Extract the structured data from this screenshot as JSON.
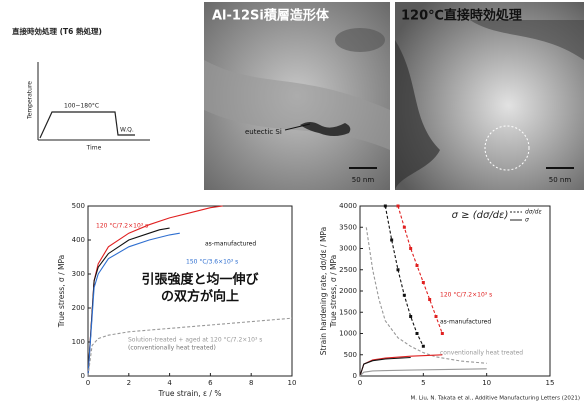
{
  "schematic": {
    "title": "直接時効処理 (T6 熱処理)",
    "y_label": "Temperature",
    "x_label": "Time",
    "temp_label": "100~180°C",
    "quench_label": "W.Q."
  },
  "micrographs": [
    {
      "title": "Al-12Si積層造形体",
      "annotation": "eutectic Si",
      "scale": "50 nm"
    },
    {
      "title": "120℃直接時効処理",
      "scale": "50 nm"
    }
  ],
  "chart_data": [
    {
      "type": "line",
      "x_label": "True strain, ε / %",
      "y_label": "True stress, σ / MPa",
      "xlim": [
        0,
        10
      ],
      "xticks": [
        0,
        2,
        4,
        6,
        8,
        10
      ],
      "ylim": [
        0,
        500
      ],
      "yticks": [
        0,
        100,
        200,
        300,
        400,
        500
      ],
      "annotation": [
        "引張強度と均一伸び",
        "の双方が向上"
      ],
      "note": "(conventionally heat treated)",
      "series": [
        {
          "name": "120 °C/7.2×10³ s",
          "color": "#e02020",
          "x": [
            0,
            0.3,
            0.5,
            1,
            2,
            3,
            4,
            5,
            6,
            6.6
          ],
          "values": [
            0,
            280,
            330,
            380,
            420,
            445,
            465,
            480,
            495,
            500
          ]
        },
        {
          "name": "as-manufactured",
          "color": "#111111",
          "x": [
            0,
            0.3,
            0.5,
            1,
            2,
            3,
            3.5,
            4
          ],
          "values": [
            0,
            280,
            320,
            360,
            400,
            420,
            430,
            435
          ]
        },
        {
          "name": "150 °C/3.6×10³ s",
          "color": "#2f6fd0",
          "x": [
            0,
            0.3,
            0.5,
            1,
            2,
            3,
            4,
            4.5
          ],
          "values": [
            0,
            260,
            300,
            345,
            380,
            400,
            415,
            420
          ]
        },
        {
          "name": "Solution-treated + aged at 120 °C/7.2×10³ s",
          "color": "#999999",
          "dashed": true,
          "x": [
            0,
            0.2,
            0.5,
            1,
            2,
            4,
            6,
            8,
            10
          ],
          "values": [
            0,
            90,
            110,
            120,
            130,
            140,
            150,
            160,
            170
          ]
        }
      ]
    },
    {
      "type": "line",
      "y_label": "True stress, σ / MPa",
      "y_label2": "Strain hardening rate, dσ/dε / MPa",
      "xlim": [
        0,
        15
      ],
      "xticks": [
        0,
        5,
        10,
        15
      ],
      "ylim": [
        0,
        4000
      ],
      "yticks": [
        0,
        500,
        1000,
        1500,
        2000,
        2500,
        3000,
        3500,
        4000
      ],
      "annotation": "σ ≥ (dσ/dε)",
      "legend": [
        {
          "label": "dσ/dε",
          "dashed": true
        },
        {
          "label": "σ",
          "dashed": false
        }
      ],
      "series": [
        {
          "name": "120 °C/7.2×10³ s",
          "color": "#e02020",
          "dashed": true,
          "marker": true,
          "x": [
            3,
            3.5,
            4,
            4.5,
            5,
            5.5,
            6,
            6.5
          ],
          "values": [
            4000,
            3500,
            3000,
            2600,
            2200,
            1800,
            1400,
            1000
          ]
        },
        {
          "name": "as-manufactured",
          "color": "#111111",
          "dashed": true,
          "marker": true,
          "x": [
            2,
            2.5,
            3,
            3.5,
            4,
            4.5,
            5
          ],
          "values": [
            4000,
            3200,
            2500,
            1900,
            1400,
            1000,
            700
          ]
        },
        {
          "name": "conventionally heat treated",
          "color": "#999999",
          "dashed": true,
          "marker": false,
          "x": [
            0.5,
            1,
            1.5,
            2,
            3,
            4,
            5,
            6,
            8,
            10
          ],
          "values": [
            3500,
            2500,
            1800,
            1300,
            900,
            700,
            550,
            450,
            350,
            300
          ]
        },
        {
          "color": "#e02020",
          "x": [
            0,
            0.3,
            1,
            2,
            4,
            6.5
          ],
          "values": [
            0,
            280,
            380,
            420,
            465,
            500
          ]
        },
        {
          "color": "#111111",
          "x": [
            0,
            0.3,
            1,
            2,
            4
          ],
          "values": [
            0,
            280,
            360,
            400,
            435
          ]
        },
        {
          "color": "#999999",
          "x": [
            0,
            0.3,
            1,
            4,
            10
          ],
          "values": [
            0,
            90,
            120,
            140,
            170
          ]
        }
      ]
    }
  ],
  "citation": "M. Liu, N. Takata et al., Additive Manufacturing Letters (2021)"
}
